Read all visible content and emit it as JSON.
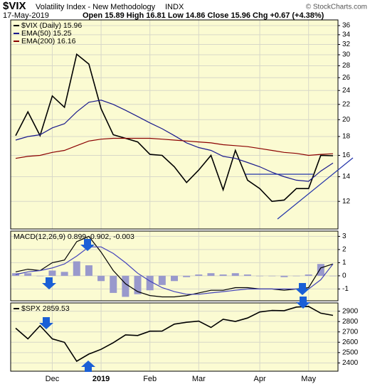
{
  "header": {
    "symbol": "$VIX",
    "title": "Volatility Index - New Methodology",
    "exchange": "INDX",
    "source": "© StockCharts.com",
    "date": "17-May-2019",
    "quote": "Open 15.89  High 16.81  Low 14.86  Close 15.96  Chg +0.67 (+4.38%)"
  },
  "chart_data": [
    {
      "type": "line",
      "log_scale": true,
      "grid": true,
      "legend": "upper left",
      "ylim": [
        10.1,
        37.3
      ],
      "yticks": [
        12,
        14,
        16,
        18,
        20,
        22,
        24,
        26,
        28,
        30,
        32,
        34,
        36
      ],
      "series": [
        {
          "name": "$VIX (Daily) 15.96",
          "color": "#000000",
          "values": [
            18.1,
            21.0,
            18.1,
            23.2,
            21.6,
            30.1,
            28.3,
            21.4,
            18.2,
            17.8,
            17.4,
            16.1,
            16.0,
            14.9,
            13.5,
            14.6,
            16.0,
            12.9,
            16.5,
            13.7,
            13.0,
            12.0,
            12.1,
            13.0,
            13.0,
            16.0,
            15.96
          ]
        },
        {
          "name": "EMA(50) 15.25",
          "color": "#1a1a8c",
          "values": [
            17.6,
            18.0,
            18.2,
            19.0,
            19.5,
            21.0,
            22.3,
            22.6,
            22.0,
            21.2,
            20.4,
            19.6,
            18.9,
            18.1,
            17.3,
            16.8,
            16.5,
            15.9,
            15.7,
            15.3,
            14.9,
            14.4,
            14.0,
            13.7,
            13.6,
            14.5,
            15.25
          ]
        },
        {
          "name": "EMA(200) 16.16",
          "color": "#8b0000",
          "values": [
            15.7,
            15.9,
            16.0,
            16.3,
            16.5,
            17.0,
            17.5,
            17.7,
            17.8,
            17.8,
            17.8,
            17.8,
            17.7,
            17.6,
            17.5,
            17.4,
            17.3,
            17.1,
            17.0,
            16.9,
            16.7,
            16.5,
            16.3,
            16.2,
            16.0,
            16.1,
            16.16
          ]
        }
      ]
    },
    {
      "type": "line",
      "grid": true,
      "label": "MACD(12,26,9) 0.899, 0.902, -0.003",
      "ylim": [
        -1.9,
        3.4
      ],
      "yticks": [
        3,
        2,
        1,
        0,
        -1
      ],
      "series": [
        {
          "type": "bar",
          "color": "#9999cc",
          "values": [
            0.2,
            0.2,
            0.0,
            0.4,
            0.3,
            1.1,
            0.8,
            -0.4,
            -1.3,
            -1.6,
            -1.4,
            -1.1,
            -0.7,
            -0.4,
            -0.1,
            0.1,
            0.2,
            0.1,
            0.2,
            0.1,
            0.0,
            0.0,
            -0.1,
            0.0,
            0.1,
            0.9,
            -0.003
          ]
        },
        {
          "color": "#000000",
          "values": [
            0.3,
            0.5,
            0.4,
            1.0,
            1.2,
            2.6,
            3.0,
            1.8,
            0.4,
            -0.6,
            -1.2,
            -1.5,
            -1.6,
            -1.6,
            -1.5,
            -1.3,
            -1.1,
            -1.1,
            -0.9,
            -0.9,
            -1.0,
            -1.0,
            -1.1,
            -1.0,
            -0.9,
            0.6,
            0.899
          ]
        },
        {
          "color": "#4444bb",
          "values": [
            0.1,
            0.3,
            0.4,
            0.6,
            0.9,
            1.5,
            2.2,
            2.2,
            1.7,
            1.0,
            0.2,
            -0.4,
            -0.9,
            -1.2,
            -1.4,
            -1.4,
            -1.3,
            -1.2,
            -1.1,
            -1.0,
            -1.0,
            -1.0,
            -1.0,
            -1.0,
            -1.0,
            -0.3,
            0.902
          ]
        }
      ]
    },
    {
      "type": "line",
      "grid": true,
      "categories": [
        null,
        null,
        null,
        "Dec",
        null,
        null,
        null,
        "2019",
        null,
        null,
        null,
        "Feb",
        null,
        null,
        null,
        "Mar",
        null,
        null,
        null,
        null,
        "Apr",
        null,
        null,
        null,
        "May",
        null,
        null
      ],
      "ylim": [
        2320,
        2980
      ],
      "yticks": [
        2400,
        2500,
        2600,
        2700,
        2800,
        2900
      ],
      "series": [
        {
          "name": "$SPX 2859.53",
          "color": "#000000",
          "values": [
            2736,
            2633,
            2760,
            2633,
            2599,
            2416,
            2486,
            2532,
            2596,
            2671,
            2665,
            2707,
            2708,
            2775,
            2793,
            2804,
            2743,
            2822,
            2801,
            2834,
            2893,
            2907,
            2905,
            2940,
            2946,
            2881,
            2859.53
          ]
        }
      ]
    }
  ]
}
